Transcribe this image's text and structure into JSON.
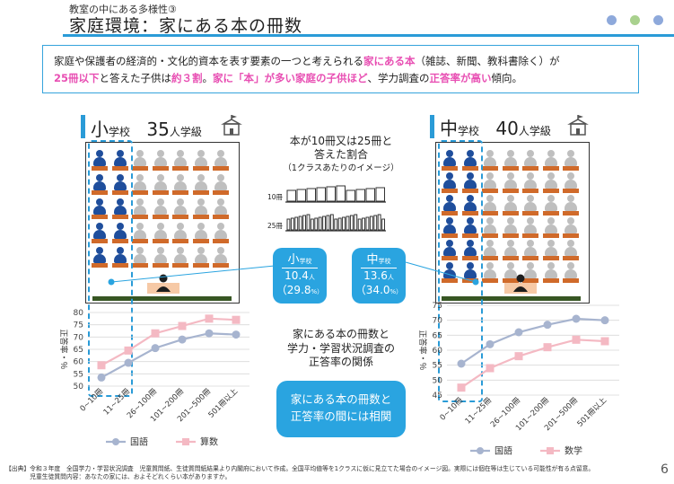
{
  "header": {
    "subtitle": "教室の中にある多様性③",
    "title": "家庭環境：家にある本の冊数",
    "dot_colors": [
      "#8ea9db",
      "#a9d18e",
      "#8ea9db"
    ]
  },
  "intro": {
    "p1": "家庭や保護者の経済的・文化的資本を表す要素の一つと考えられる",
    "h1": "家にある本",
    "p2": "（雑誌、新聞、教科書除く）が",
    "h2": "25冊以下",
    "p3": "と答えた子供は",
    "h3": "約３割",
    "p4": "。",
    "h4": "家に「本」が多い家庭の子供ほど",
    "p5": "、学力調査の",
    "h5": "正答率が高い",
    "p6": "傾向。"
  },
  "elementary": {
    "big_char": "小",
    "school_word": "学校",
    "count": "35",
    "count_unit": "人学級",
    "callout_title_big": "小",
    "callout_title_small": "学校",
    "value": "10.4",
    "value_unit": "人",
    "pct": "（29.8",
    "pct_unit": "%）"
  },
  "junior": {
    "big_char": "中",
    "school_word": "学校",
    "count": "40",
    "count_unit": "人学級",
    "callout_title_big": "中",
    "callout_title_small": "学校",
    "value": "13.6",
    "value_unit": "人",
    "pct": "（34.0",
    "pct_unit": "%）"
  },
  "center": {
    "top_line1": "本が10冊又は25冊と",
    "top_line2": "答えた割合",
    "top_line3": "（1クラスあたりのイメージ）",
    "row1_label": "10冊",
    "row2_label": "25冊",
    "mid_line1": "家にある本の冊数と",
    "mid_line2": "学力・学習状況調査の",
    "mid_line3": "正答率の関係",
    "box_line1": "家にある本の冊数と",
    "box_line2": "正答率の間には相関"
  },
  "footnote": {
    "line1": "【出典】令和３年度　全国学力・学習状況調査　児童質問紙、生徒質問紙結果より内閣府において作成。全国平均値等を1クラスに仮に見立てた場合のイメージ図。実際には個在等は生じている可能性が有る点留意。",
    "line2": "　　　　児童生徒質問内容：あなたの家には、およそどれくらい本がありますか。"
  },
  "page_number": "6",
  "chart_data": [
    {
      "type": "line",
      "categories": [
        "0~10冊",
        "11~25冊",
        "26~100冊",
        "101~200冊",
        "201~500冊",
        "501冊以上"
      ],
      "series": [
        {
          "name": "国語",
          "values": [
            53.5,
            59.5,
            65.5,
            69,
            71.5,
            71
          ],
          "color": "#a7b4cf"
        },
        {
          "name": "算数",
          "values": [
            58.5,
            64.5,
            71.5,
            74.5,
            77.5,
            77
          ],
          "color": "#f4b9c3"
        }
      ],
      "ylabel": "正答率・％",
      "ylim": [
        50,
        80
      ],
      "yticks": [
        50,
        55,
        60,
        65,
        70,
        75,
        80
      ],
      "grid": true,
      "legend": "bottom"
    },
    {
      "type": "line",
      "categories": [
        "0~10冊",
        "11~25冊",
        "26~100冊",
        "101~200冊",
        "201~500冊",
        "501冊以上"
      ],
      "series": [
        {
          "name": "国語",
          "values": [
            55.5,
            62,
            66,
            68.5,
            70.5,
            70
          ],
          "color": "#a7b4cf"
        },
        {
          "name": "数学",
          "values": [
            47.5,
            54,
            58,
            61,
            63.5,
            63
          ],
          "color": "#f4b9c3"
        }
      ],
      "ylabel": "正答率・％",
      "ylim": [
        45,
        75
      ],
      "yticks": [
        45,
        50,
        55,
        60,
        65,
        70,
        75
      ],
      "grid": true,
      "legend": "bottom"
    }
  ]
}
